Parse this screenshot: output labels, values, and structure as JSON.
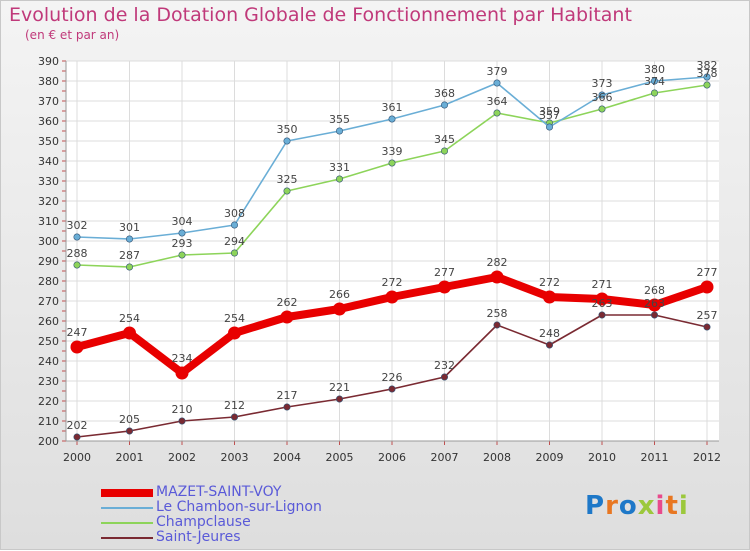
{
  "header": {
    "title": "Evolution de la Dotation Globale de Fonctionnement par Habitant",
    "subtitle": "(en € et par an)"
  },
  "logo": {
    "letters": [
      "P",
      "r",
      "o",
      "x",
      "i",
      "t",
      "i"
    ],
    "colors": [
      "#1e78c8",
      "#e87722",
      "#1e78c8",
      "#9cc83c",
      "#e84a8c",
      "#e87722",
      "#9cc83c"
    ]
  },
  "chart_data": {
    "type": "line",
    "x": [
      "2000",
      "2001",
      "2002",
      "2003",
      "2004",
      "2005",
      "2006",
      "2007",
      "2008",
      "2009",
      "2010",
      "2011",
      "2012"
    ],
    "ylim": [
      200,
      390
    ],
    "yticks": [
      200,
      210,
      220,
      230,
      240,
      250,
      260,
      270,
      280,
      290,
      300,
      310,
      320,
      330,
      340,
      350,
      360,
      370,
      380,
      390
    ],
    "grid": true,
    "legend_position": "bottom-left",
    "series": [
      {
        "name": "MAZET-SAINT-VOY",
        "values": [
          247,
          254,
          234,
          254,
          262,
          266,
          272,
          277,
          282,
          272,
          271,
          268,
          277
        ],
        "color": "#e80000"
      },
      {
        "name": "Le Chambon-sur-Lignon",
        "values": [
          302,
          301,
          304,
          308,
          350,
          355,
          361,
          368,
          379,
          357,
          373,
          380,
          382
        ],
        "color": "#6aaed6"
      },
      {
        "name": "Champclause",
        "values": [
          288,
          287,
          293,
          294,
          325,
          331,
          339,
          345,
          364,
          359,
          366,
          374,
          378
        ],
        "color": "#8dd45a"
      },
      {
        "name": "Saint-Jeures",
        "values": [
          202,
          205,
          210,
          212,
          217,
          221,
          226,
          232,
          258,
          248,
          263,
          263,
          257
        ],
        "color": "#7a2a32"
      }
    ]
  }
}
